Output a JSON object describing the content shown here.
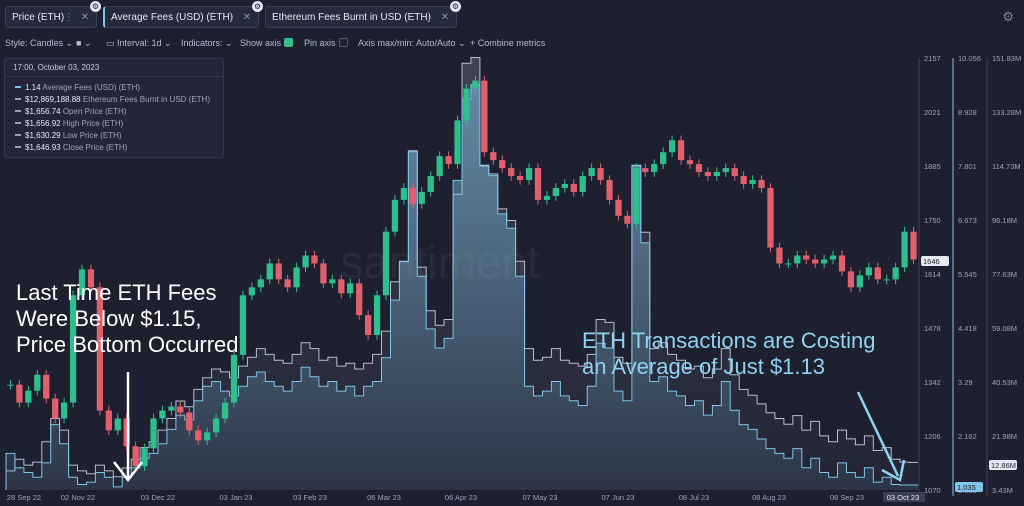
{
  "tabs": [
    {
      "label": "Price (ETH)"
    },
    {
      "label": "Average Fees (USD) (ETH)"
    },
    {
      "label": "Ethereum Fees Burnt in USD (ETH)"
    }
  ],
  "toolbar": {
    "style": "Style: Candles",
    "interval": "Interval: 1d",
    "indicators": "Indicators:",
    "show_axis": "Show axis",
    "pin_axis": "Pin axis",
    "axis_maxmin": "Axis max/min: Auto/Auto",
    "combine": "+ Combine metrics"
  },
  "infobox": {
    "datetime": "17:00, October 03, 2023",
    "rows": [
      {
        "value": "1.14",
        "label": "Average Fees (USD) (ETH)"
      },
      {
        "value": "$12,869,188.88",
        "label": "Ethereum Fees Burnt in USD (ETH)"
      },
      {
        "value": "$1,656.74",
        "label": "Open Price (ETH)"
      },
      {
        "value": "$1,656.92",
        "label": "High Price (ETH)"
      },
      {
        "value": "$1,630.29",
        "label": "Low Price (ETH)"
      },
      {
        "value": "$1,646.93",
        "label": "Close Price (ETH)"
      }
    ]
  },
  "annotations": {
    "left": [
      "Last Time ETH Fees",
      "Were Below $1.15,",
      "Price Bottom Occurred"
    ],
    "right": [
      "ETH Transactions are Costing",
      "an Average of Just $1.13"
    ]
  },
  "watermark": "santiment",
  "colors": {
    "background": "#1e2030",
    "up": "#2fbf8f",
    "down": "#e2606e",
    "fees": "#7fc3e8",
    "burnt": "#b9bdd2",
    "annotation": "#ffffff",
    "annotation_right": "#8fd3f2"
  },
  "chart_data": {
    "type": "line",
    "x_ticks": [
      "28 Sep 22",
      "02 Nov 22",
      "03 Dec 22",
      "03 Jan 23",
      "03 Feb 23",
      "06 Mar 23",
      "06 Apr 23",
      "07 May 23",
      "07 Jun 23",
      "08 Jul 23",
      "08 Aug 23",
      "08 Sep 23",
      "03 Oct 23"
    ],
    "axes": {
      "price": {
        "ticks": [
          "2157",
          "2021",
          "1885",
          "1750",
          "1614",
          "1478",
          "1342",
          "1206",
          "1070"
        ],
        "ylim": [
          1070,
          2157
        ],
        "current_label": "1646"
      },
      "fees": {
        "ticks": [
          "10.056",
          "8.928",
          "7.801",
          "6.673",
          "5.545",
          "4.418",
          "3.29",
          "2.162",
          "1.035"
        ],
        "ylim": [
          1.035,
          10.056
        ],
        "current_label": "1.035"
      },
      "burnt": {
        "ticks": [
          "151.83M",
          "133.28M",
          "114.73M",
          "96.18M",
          "77.63M",
          "59.08M",
          "40.53M",
          "21.98M",
          "3.43M"
        ],
        "ylim": [
          3.43,
          151.83
        ],
        "current_label": "12.86M"
      }
    },
    "series": [
      {
        "name": "Price (ETH)",
        "type": "candles",
        "values": [
          1335,
          1290,
          1320,
          1360,
          1300,
          1250,
          1290,
          1560,
          1625,
          1580,
          1270,
          1220,
          1250,
          1180,
          1130,
          1175,
          1250,
          1270,
          1280,
          1265,
          1220,
          1195,
          1215,
          1250,
          1290,
          1410,
          1560,
          1580,
          1600,
          1640,
          1600,
          1580,
          1630,
          1660,
          1640,
          1590,
          1600,
          1565,
          1590,
          1510,
          1460,
          1560,
          1720,
          1800,
          1830,
          1790,
          1820,
          1860,
          1910,
          1890,
          2000,
          2080,
          2100,
          1920,
          1900,
          1880,
          1860,
          1850,
          1880,
          1800,
          1810,
          1830,
          1840,
          1820,
          1860,
          1880,
          1850,
          1800,
          1760,
          1740,
          1880,
          1870,
          1890,
          1920,
          1950,
          1900,
          1890,
          1870,
          1860,
          1870,
          1880,
          1860,
          1840,
          1850,
          1830,
          1680,
          1640,
          1640,
          1660,
          1650,
          1640,
          1650,
          1660,
          1620,
          1580,
          1610,
          1630,
          1600,
          1600,
          1630,
          1720,
          1650
        ]
      },
      {
        "name": "Average Fees (USD) (ETH)",
        "type": "step",
        "values": [
          1.8,
          1.5,
          1.4,
          1.3,
          1.6,
          2.4,
          2.0,
          1.3,
          1.15,
          1.2,
          1.4,
          1.3,
          1.1,
          1.3,
          1.5,
          1.7,
          1.8,
          2.0,
          2.3,
          2.6,
          2.5,
          2.9,
          3.2,
          3.3,
          3.1,
          3.0,
          3.2,
          3.4,
          3.5,
          3.3,
          3.2,
          3.1,
          3.3,
          3.6,
          3.4,
          3.2,
          3.3,
          3.1,
          3.2,
          3.0,
          3.2,
          3.3,
          3.8,
          5.0,
          5.8,
          8.1,
          5.5,
          4.4,
          4.0,
          4.2,
          7.5,
          9.2,
          9.5,
          7.8,
          7.6,
          6.8,
          6.5,
          5.5,
          3.2,
          3.0,
          3.1,
          3.3,
          3.0,
          2.9,
          2.8,
          3.2,
          4.1,
          4.0,
          3.1,
          2.9,
          7.8,
          6.2,
          3.3,
          3.4,
          3.1,
          3.0,
          2.8,
          2.9,
          2.6,
          2.8,
          3.3,
          2.7,
          2.4,
          2.3,
          2.1,
          1.9,
          1.8,
          1.7,
          1.9,
          1.5,
          1.7,
          1.4,
          1.3,
          1.6,
          1.4,
          1.3,
          1.5,
          1.2,
          1.3,
          1.15,
          1.14,
          1.14
        ]
      },
      {
        "name": "Ethereum Fees Burnt in USD (ETH)",
        "type": "step",
        "values": [
          10,
          14,
          12,
          13,
          20,
          28,
          24,
          12,
          10,
          9,
          12,
          10,
          8,
          11,
          14,
          18,
          20,
          24,
          28,
          34,
          32,
          38,
          42,
          45,
          44,
          42,
          46,
          49,
          52,
          50,
          48,
          47,
          50,
          54,
          52,
          48,
          49,
          46,
          47,
          45,
          47,
          50,
          58,
          75,
          82,
          120,
          80,
          65,
          60,
          62,
          105,
          150,
          152,
          115,
          112,
          100,
          96,
          82,
          52,
          48,
          49,
          52,
          48,
          47,
          46,
          50,
          62,
          61,
          49,
          47,
          115,
          92,
          52,
          54,
          50,
          48,
          45,
          46,
          42,
          45,
          52,
          43,
          38,
          36,
          33,
          30,
          28,
          26,
          29,
          24,
          27,
          22,
          20,
          24,
          21,
          19,
          22,
          17,
          18,
          14,
          13,
          12.9
        ]
      }
    ],
    "grid": false,
    "legend": "top-left"
  }
}
